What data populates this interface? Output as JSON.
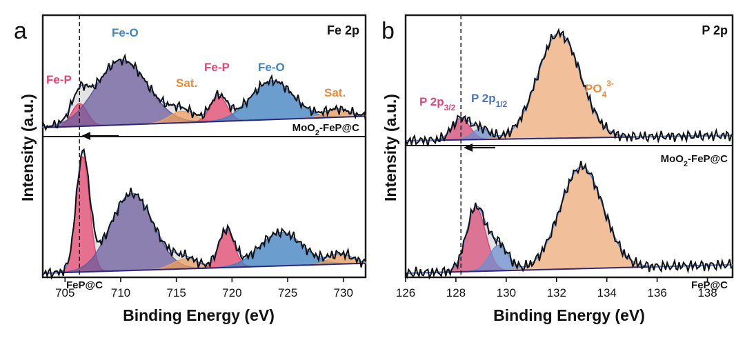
{
  "chart_data": [
    {
      "panel": "a",
      "core_level": "Fe 2p",
      "type": "line",
      "xlabel": "Binding Energy (eV)",
      "ylabel": "Intensity (a.u.)",
      "xlim": [
        703,
        732
      ],
      "xticks": [
        "705",
        "710",
        "715",
        "720",
        "725",
        "730"
      ],
      "dashed_line_x": 706.3,
      "spectra": [
        {
          "sample": "MoO2-FeP@C",
          "sample_label_main": "MoO",
          "sample_label_sub": "2",
          "sample_label_rest": "-FeP@C",
          "shift_arrow": "left",
          "peaks": [
            {
              "label": "Fe-P",
              "center": 706.3,
              "height": 0.2,
              "width": 0.7,
              "color": "#e8456e"
            },
            {
              "label": "Fe-O",
              "center": 710.1,
              "height": 0.57,
              "width": 2.3,
              "color": "#6a5a9c"
            },
            {
              "label": "Sat.",
              "center": 715.5,
              "height": 0.1,
              "width": 1.1,
              "color": "#f0a060"
            },
            {
              "label": "Fe-P",
              "center": 718.8,
              "height": 0.22,
              "width": 0.75,
              "color": "#e8456e"
            },
            {
              "label": "Fe-O",
              "center": 723.6,
              "height": 0.34,
              "width": 1.9,
              "color": "#3d84c6"
            },
            {
              "label": "Sat.",
              "center": 729.5,
              "height": 0.07,
              "width": 1.1,
              "color": "#f0a060"
            }
          ]
        },
        {
          "sample": "FeP@C",
          "sample_label_main": "FeP@C",
          "peaks": [
            {
              "label": "Fe-P",
              "center": 706.6,
              "height": 0.93,
              "width": 0.6,
              "color": "#e8456e"
            },
            {
              "label": "Fe-O",
              "center": 711.0,
              "height": 0.62,
              "width": 1.9,
              "color": "#6a5a9c"
            },
            {
              "label": "Sat.",
              "center": 715.8,
              "height": 0.08,
              "width": 1.1,
              "color": "#f0a060"
            },
            {
              "label": "Fe-P",
              "center": 719.5,
              "height": 0.3,
              "width": 0.7,
              "color": "#e8456e"
            },
            {
              "label": "Fe-O",
              "center": 724.4,
              "height": 0.27,
              "width": 1.9,
              "color": "#3d84c6"
            },
            {
              "label": "Sat.",
              "center": 729.8,
              "height": 0.08,
              "width": 1.0,
              "color": "#f0a060"
            }
          ]
        }
      ]
    },
    {
      "panel": "b",
      "core_level": "P 2p",
      "type": "line",
      "xlabel": "Binding Energy (eV)",
      "ylabel": "Intensity (a.u.)",
      "xlim": [
        126,
        139
      ],
      "xticks": [
        "126",
        "128",
        "130",
        "132",
        "134",
        "136",
        "138"
      ],
      "dashed_line_x": 128.2,
      "peak_labels": {
        "p32_main": "P 2p",
        "p32_sub": "3/2",
        "p12_main": "P 2p",
        "p12_sub": "1/2",
        "po4_main": "PO",
        "po4_sub": "4",
        "po4_sup": "3-"
      },
      "spectra": [
        {
          "sample": "MoO2-FeP@C",
          "sample_label_main": "MoO",
          "sample_label_sub": "2",
          "sample_label_rest": "-FeP@C",
          "shift_arrow": "left",
          "peaks": [
            {
              "label": "P 2p3/2",
              "center": 128.2,
              "height": 0.16,
              "width": 0.35,
              "color": "#d94a78"
            },
            {
              "label": "P 2p1/2",
              "center": 129.0,
              "height": 0.08,
              "width": 0.35,
              "color": "#6e8fd0"
            },
            {
              "label": "PO4 3-",
              "center": 132.1,
              "height": 0.78,
              "width": 0.85,
              "color": "#f6b27e"
            }
          ]
        },
        {
          "sample": "FeP@C",
          "sample_label_main": "FeP@C",
          "peaks": [
            {
              "label": "P 2p3/2",
              "center": 128.8,
              "height": 0.45,
              "width": 0.38,
              "color": "#d94a78"
            },
            {
              "label": "P 2p1/2",
              "center": 129.7,
              "height": 0.18,
              "width": 0.38,
              "color": "#6e8fd0"
            },
            {
              "label": "PO4 3-",
              "center": 133.0,
              "height": 0.72,
              "width": 0.85,
              "color": "#f6b27e"
            }
          ]
        }
      ]
    }
  ]
}
